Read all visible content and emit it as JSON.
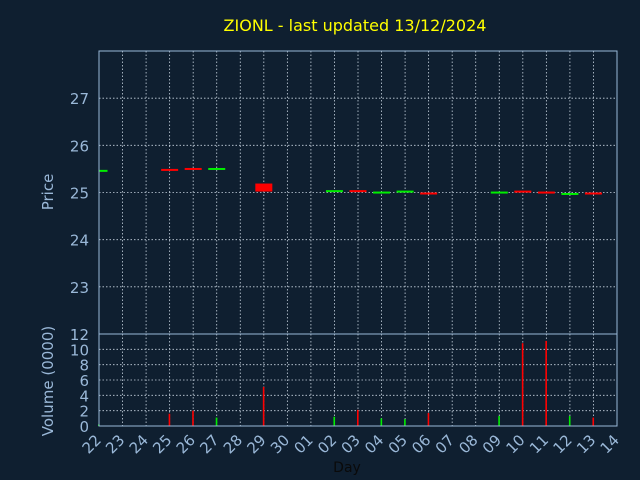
{
  "chart_data": [
    {
      "type": "candlestick",
      "title": "ZIONL - last updated 13/12/2024",
      "ylabel": "Price",
      "ylim": [
        22,
        28
      ],
      "yticks": [
        23,
        24,
        25,
        26,
        27
      ],
      "grid": true,
      "xticks": [
        "22",
        "23",
        "24",
        "25",
        "26",
        "27",
        "28",
        "29",
        "30",
        "01",
        "02",
        "03",
        "04",
        "05",
        "06",
        "07",
        "08",
        "09",
        "10",
        "11",
        "12",
        "13",
        "14"
      ],
      "candles": [
        {
          "day": "22",
          "open": 25.47,
          "close": 25.48
        },
        {
          "day": "25",
          "open": 25.5,
          "close": 25.49
        },
        {
          "day": "26",
          "open": 25.52,
          "close": 25.51
        },
        {
          "day": "27",
          "open": 25.51,
          "close": 25.52
        },
        {
          "day": "29",
          "open": 25.19,
          "close": 25.02
        },
        {
          "day": "02",
          "open": 25.03,
          "close": 25.05
        },
        {
          "day": "03",
          "open": 25.05,
          "close": 25.02
        },
        {
          "day": "04",
          "open": 25.01,
          "close": 25.02
        },
        {
          "day": "05",
          "open": 25.02,
          "close": 25.04
        },
        {
          "day": "06",
          "open": 25.0,
          "close": 24.98
        },
        {
          "day": "09",
          "open": 25.01,
          "close": 25.02
        },
        {
          "day": "10",
          "open": 25.04,
          "close": 25.02
        },
        {
          "day": "11",
          "open": 25.02,
          "close": 25.0
        },
        {
          "day": "12",
          "open": 24.98,
          "close": 24.99
        },
        {
          "day": "13",
          "open": 25.0,
          "close": 24.98
        }
      ]
    },
    {
      "type": "bar",
      "ylabel": "Volume (0000)",
      "xlabel": "Day",
      "ylim": [
        0,
        12
      ],
      "yticks": [
        0,
        2,
        4,
        6,
        8,
        10,
        12
      ],
      "grid": true,
      "categories": [
        "22",
        "25",
        "26",
        "27",
        "29",
        "02",
        "03",
        "04",
        "05",
        "06",
        "09",
        "10",
        "11",
        "12",
        "13"
      ],
      "values": [
        0.2,
        1.6,
        2.0,
        1.1,
        5.1,
        1.2,
        2.1,
        1.0,
        0.9,
        1.7,
        1.3,
        10.8,
        11.1,
        1.3,
        1.1
      ],
      "bar_up": [
        true,
        false,
        false,
        true,
        false,
        true,
        false,
        true,
        true,
        false,
        true,
        false,
        false,
        true,
        false
      ]
    }
  ],
  "colors": {
    "background": "#0f1f30",
    "title": "#ffff00",
    "axis_text": "#9ab8d8",
    "frame": "#9ab8d8",
    "grid": "#c8d4e0",
    "up": "#00ee00",
    "down": "#ff0000"
  }
}
